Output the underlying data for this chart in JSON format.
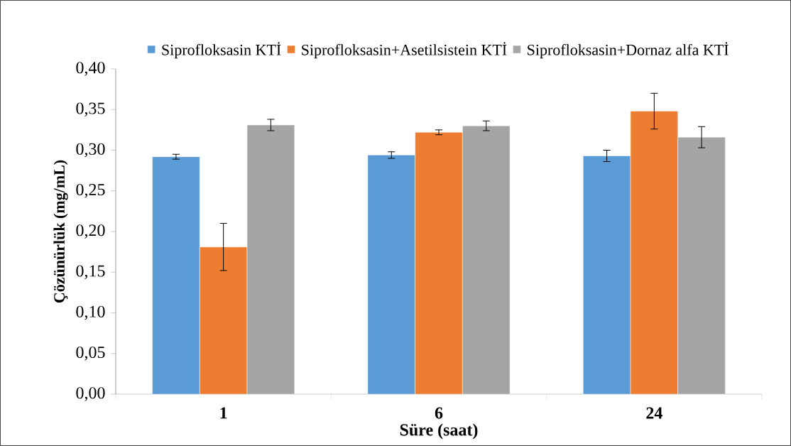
{
  "chart_data": {
    "type": "bar",
    "xlabel": "Süre (saat)",
    "ylabel": "Çözünürlük (mg/mL)",
    "categories": [
      "1",
      "6",
      "24"
    ],
    "series": [
      {
        "name": "Siprofloksasin KTİ",
        "color": "#5b9bd5",
        "values": [
          0.292,
          0.294,
          0.293
        ],
        "errors": [
          0.003,
          0.004,
          0.007
        ]
      },
      {
        "name": "Siprofloksasin+Asetilsistein KTİ",
        "color": "#ed7d31",
        "values": [
          0.181,
          0.322,
          0.348
        ],
        "errors": [
          0.029,
          0.003,
          0.022
        ]
      },
      {
        "name": "Siprofloksasin+Dornaz alfa KTİ",
        "color": "#a5a5a5",
        "values": [
          0.331,
          0.33,
          0.316
        ],
        "errors": [
          0.007,
          0.006,
          0.013
        ]
      }
    ],
    "ylim": [
      0,
      0.4
    ],
    "yticks": [
      {
        "value": 0,
        "label": "0,00"
      },
      {
        "value": 0.05,
        "label": "0,05"
      },
      {
        "value": 0.1,
        "label": "0,10"
      },
      {
        "value": 0.15,
        "label": "0,15"
      },
      {
        "value": 0.2,
        "label": "0,20"
      },
      {
        "value": 0.25,
        "label": "0,25"
      },
      {
        "value": 0.3,
        "label": "0,30"
      },
      {
        "value": 0.35,
        "label": "0,35"
      },
      {
        "value": 0.4,
        "label": "0,40"
      }
    ],
    "legend": "top",
    "grid": false
  }
}
